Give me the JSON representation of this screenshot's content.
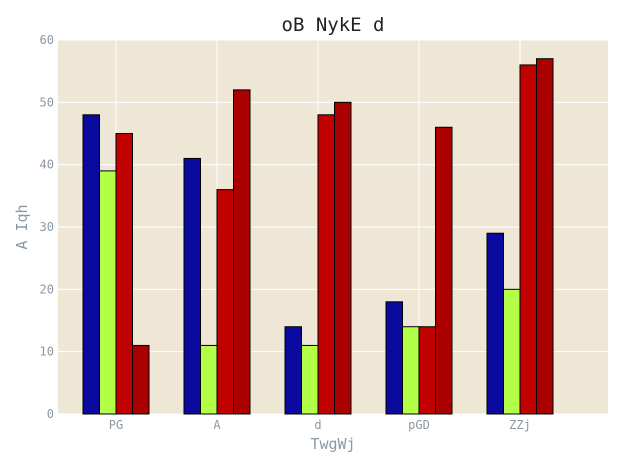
{
  "chart_data": {
    "type": "bar",
    "title": "oB NykE d",
    "xlabel": "TwgWj",
    "ylabel": "A Iqh",
    "categories": [
      "PG",
      "A",
      "d",
      "pGD",
      "ZZj"
    ],
    "series": [
      {
        "values": [
          48,
          41,
          14,
          18,
          29
        ],
        "color": "#0a0a9e"
      },
      {
        "values": [
          39,
          11,
          11,
          14,
          20
        ],
        "color": "#b3ff47"
      },
      {
        "values": [
          45,
          36,
          48,
          14,
          56
        ],
        "color": "#c10000"
      },
      {
        "values": [
          11,
          52,
          50,
          46,
          57
        ],
        "color": "#aa0000"
      }
    ],
    "ylim": [
      0,
      60
    ],
    "yticks": [
      0,
      10,
      20,
      30,
      40,
      50,
      60
    ],
    "grid": true,
    "background": "#efe7d5",
    "grid_color": "#ffffff"
  }
}
